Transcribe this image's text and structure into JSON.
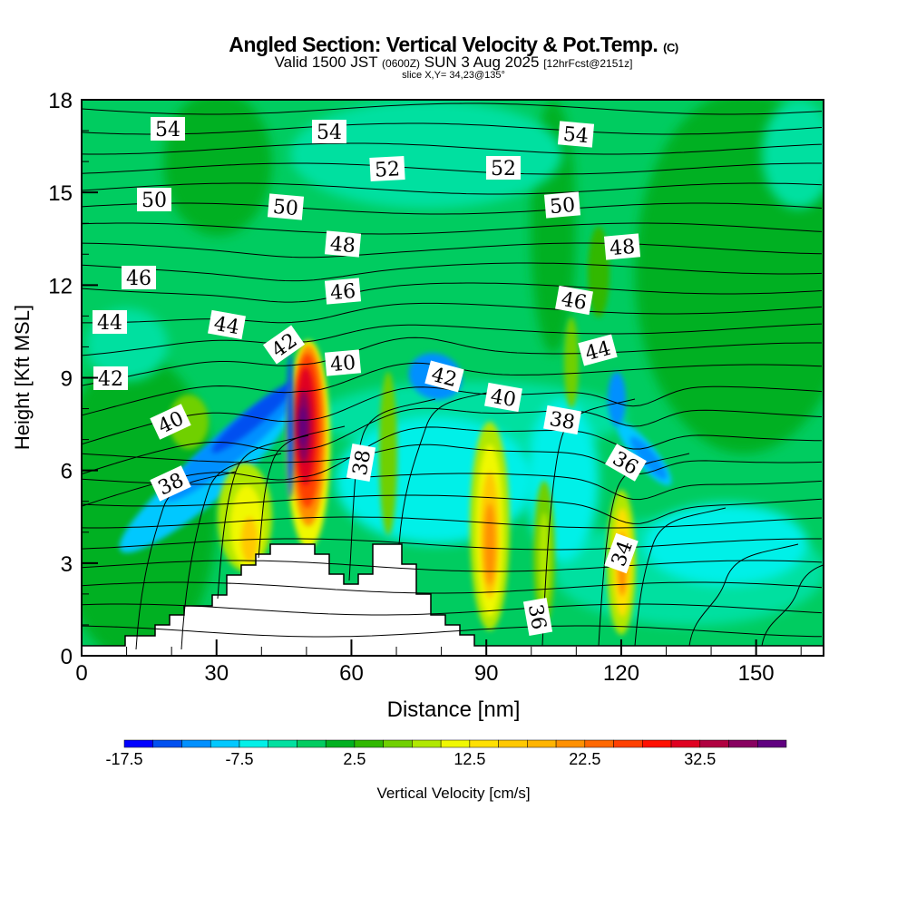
{
  "chart_data": {
    "type": "heatmap",
    "title": "Angled Section: Vertical Velocity & Pot.Temp.",
    "title_mark": "(C)",
    "subtitle_main": "Valid 1500 JST",
    "subtitle_utc": "(0600Z)",
    "subtitle_date": "SUN 3 Aug 2025",
    "subtitle_fcst": "[12hrFcst@2151z]",
    "slice": "slice X,Y= 34,23@135°",
    "xlabel": "Distance [nm]",
    "ylabel": "Height [Kft MSL]",
    "xlim": [
      0,
      165
    ],
    "ylim": [
      0,
      18
    ],
    "xticks": [
      "0",
      "30",
      "60",
      "90",
      "120",
      "150"
    ],
    "yticks": [
      "0",
      "3",
      "6",
      "9",
      "12",
      "15",
      "18"
    ],
    "colorbar": {
      "label": "Vertical Velocity [cm/s]",
      "min": -17.5,
      "step": 2.5,
      "tick_labels": [
        "-17.5",
        "-7.5",
        "2.5",
        "12.5",
        "22.5",
        "32.5"
      ],
      "colors": [
        "#0000ff",
        "#0050f0",
        "#0090ff",
        "#00c8ff",
        "#00f0e8",
        "#00e0a0",
        "#00cc60",
        "#00b020",
        "#30b800",
        "#70d000",
        "#b0e800",
        "#f0f800",
        "#ffe000",
        "#ffc800",
        "#ffb400",
        "#ff9000",
        "#ff6800",
        "#ff4000",
        "#ff1000",
        "#e00020",
        "#b00040",
        "#880060",
        "#600080"
      ]
    },
    "contour_field": "Potential Temperature",
    "contour_labels": [
      "54",
      "54",
      "54",
      "52",
      "52",
      "50",
      "50",
      "50",
      "48",
      "48",
      "46",
      "46",
      "46",
      "44",
      "44",
      "44",
      "42",
      "42",
      "42",
      "40",
      "40",
      "40",
      "38",
      "38",
      "38",
      "36",
      "36",
      "34"
    ],
    "vertical_velocity_features": [
      {
        "name": "strong updraft",
        "x_nm": 50,
        "height_kft": [
          4,
          10
        ],
        "max_cm_s": 37.5
      },
      {
        "name": "updraft",
        "x_nm": 91,
        "height_kft": [
          1,
          6.5
        ],
        "max_cm_s": 20
      },
      {
        "name": "updraft",
        "x_nm": 36,
        "height_kft": [
          3,
          6
        ],
        "max_cm_s": 15
      },
      {
        "name": "updraft",
        "x_nm": 120,
        "height_kft": [
          1,
          5
        ],
        "max_cm_s": 17.5
      },
      {
        "name": "downdraft band",
        "x_nm": [
          20,
          47
        ],
        "height_kft": [
          5,
          10
        ],
        "min_cm_s": -15
      },
      {
        "name": "downdraft band",
        "x_nm": [
          118,
          135
        ],
        "height_kft": [
          4,
          8
        ],
        "min_cm_s": -12.5
      }
    ]
  }
}
